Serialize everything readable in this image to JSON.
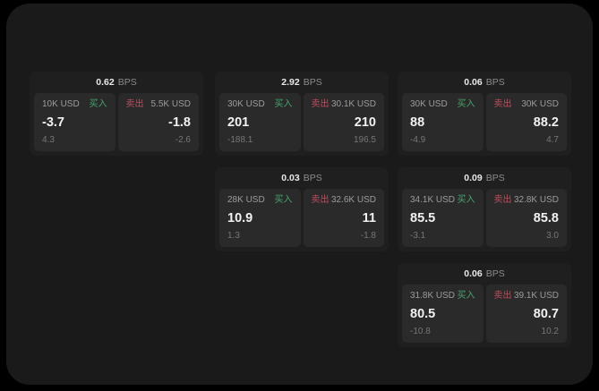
{
  "labels": {
    "bps": "BPS",
    "buy": "买入",
    "sell": "卖出"
  },
  "colors": {
    "buy": "#46a56d",
    "sell": "#bb4f5e",
    "panel_background": "#1a1a1b",
    "card_background": "#1f1f1f",
    "tile_background": "#2a2a2a"
  },
  "cards": [
    {
      "row": 0,
      "col": 0,
      "bps": "0.62",
      "buy": {
        "amount": "10K USD",
        "value": "-3.7",
        "delta": "4.3"
      },
      "sell": {
        "amount": "5.5K USD",
        "value": "-1.8",
        "delta": "-2.6"
      }
    },
    {
      "row": 0,
      "col": 1,
      "bps": "2.92",
      "buy": {
        "amount": "30K USD",
        "value": "201",
        "delta": "-188.1"
      },
      "sell": {
        "amount": "30.1K USD",
        "value": "210",
        "delta": "196.5"
      }
    },
    {
      "row": 0,
      "col": 2,
      "bps": "0.06",
      "buy": {
        "amount": "30K USD",
        "value": "88",
        "delta": "-4.9"
      },
      "sell": {
        "amount": "30K USD",
        "value": "88.2",
        "delta": "4.7"
      }
    },
    {
      "row": 1,
      "col": 1,
      "bps": "0.03",
      "buy": {
        "amount": "28K USD",
        "value": "10.9",
        "delta": "1.3"
      },
      "sell": {
        "amount": "32.6K USD",
        "value": "11",
        "delta": "-1.8"
      }
    },
    {
      "row": 1,
      "col": 2,
      "bps": "0.09",
      "buy": {
        "amount": "34.1K USD",
        "value": "85.5",
        "delta": "-3.1"
      },
      "sell": {
        "amount": "32.8K USD",
        "value": "85.8",
        "delta": "3.0"
      }
    },
    {
      "row": 2,
      "col": 2,
      "bps": "0.06",
      "buy": {
        "amount": "31.8K USD",
        "value": "80.5",
        "delta": "-10.8"
      },
      "sell": {
        "amount": "39.1K USD",
        "value": "80.7",
        "delta": "10.2"
      }
    }
  ]
}
